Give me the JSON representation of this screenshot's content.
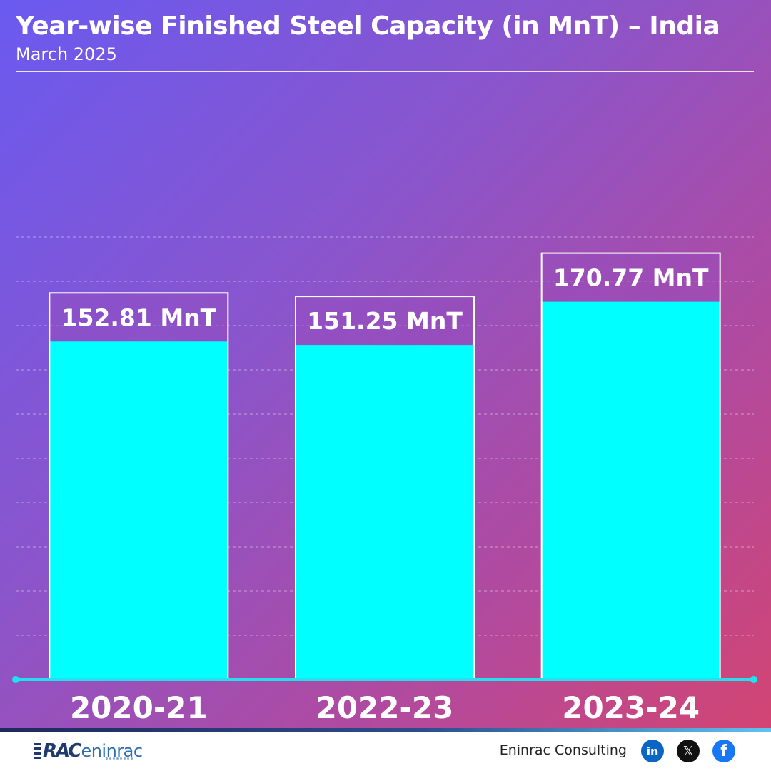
{
  "header": {
    "title": "Year-wise Finished Steel Capacity (in MnT) – India",
    "subtitle": "March 2025"
  },
  "chart_data": {
    "type": "bar",
    "categories": [
      "2020-21",
      "2022-23",
      "2023-24"
    ],
    "values": [
      152.81,
      151.25,
      170.77
    ],
    "value_labels": [
      "152.81 MnT",
      "151.25 MnT",
      "170.77 MnT"
    ],
    "unit": "MnT",
    "ylim": [
      0,
      200
    ],
    "grid": true,
    "colors": {
      "bar_fill": "#00ffff",
      "label_band": "rgba(150,75,190,0.5)",
      "bar_outline": "#ffffff",
      "axis": "#22e0ee"
    }
  },
  "footer": {
    "logo_prefix": "RAC",
    "logo_word": "eninrac",
    "company": "Eninrac Consulting",
    "social": [
      {
        "icon": "linkedin-icon",
        "glyph": "in"
      },
      {
        "icon": "x-icon",
        "glyph": "𝕏"
      },
      {
        "icon": "facebook-icon",
        "glyph": "f"
      }
    ]
  }
}
